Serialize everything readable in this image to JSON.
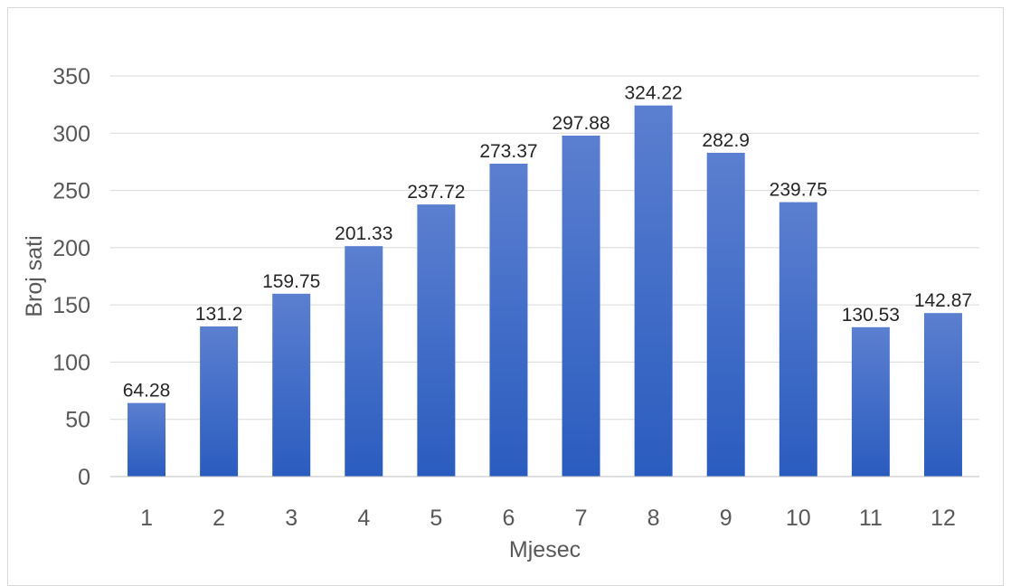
{
  "chart_data": {
    "type": "bar",
    "title": "",
    "xlabel": "Mjesec",
    "ylabel": "Broj sati",
    "categories": [
      "1",
      "2",
      "3",
      "4",
      "5",
      "6",
      "7",
      "8",
      "9",
      "10",
      "11",
      "12"
    ],
    "values": [
      64.28,
      131.2,
      159.75,
      201.33,
      237.72,
      273.37,
      297.88,
      324.22,
      282.9,
      239.75,
      130.53,
      142.87
    ],
    "value_labels": [
      "64.28",
      "131.2",
      "159.75",
      "201.33",
      "237.72",
      "273.37",
      "297.88",
      "324.22",
      "282.9",
      "239.75",
      "130.53",
      "142.87"
    ],
    "ylim": [
      0,
      350
    ],
    "yticks": [
      "0",
      "50",
      "100",
      "150",
      "200",
      "250",
      "300",
      "350"
    ],
    "grid": true,
    "legend": "none",
    "colors": {
      "bar_top": "#5b7fd0",
      "bar_bottom": "#2a5cbf",
      "grid": "#d9d9d9",
      "axis": "#bfbfbf"
    }
  }
}
